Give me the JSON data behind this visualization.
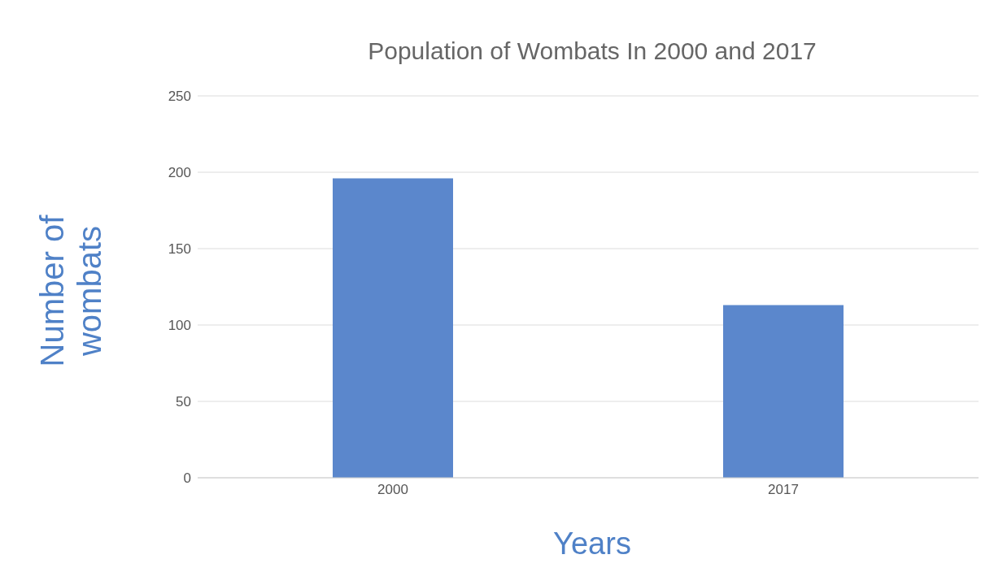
{
  "chart_data": {
    "type": "bar",
    "title": "Population of Wombats In 2000 and 2017",
    "xlabel": "Years",
    "ylabel": "Number of wombats",
    "categories": [
      "2000",
      "2017"
    ],
    "values": [
      196,
      113
    ],
    "color": "#5b87cc",
    "ylim": [
      0,
      250
    ],
    "yticks": [
      0,
      50,
      100,
      150,
      200,
      250
    ],
    "grid": "y"
  }
}
